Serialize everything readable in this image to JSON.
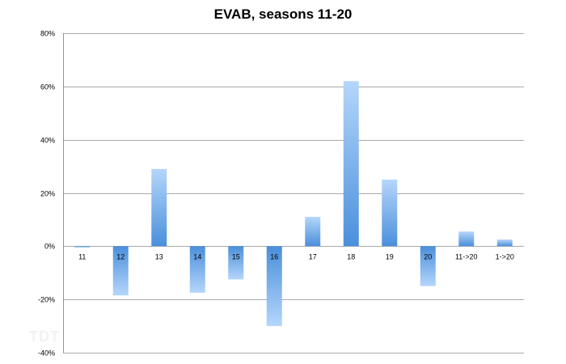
{
  "chart_data": {
    "type": "bar",
    "title": "EVAB, seasons 11-20",
    "xlabel": "",
    "ylabel": "",
    "categories": [
      "11",
      "12",
      "13",
      "14",
      "15",
      "16",
      "17",
      "18",
      "19",
      "20",
      "11->20",
      "1->20"
    ],
    "values": [
      -0.5,
      -18.5,
      29,
      -17.5,
      -12.5,
      -30,
      11,
      62,
      25,
      -15,
      5.5,
      2.5
    ],
    "ylim": [
      -40,
      80
    ],
    "yticks": [
      80,
      60,
      40,
      20,
      0,
      -20,
      -40
    ],
    "ytick_labels": [
      "80%",
      "60%",
      "40%",
      "20%",
      "0%",
      "-20%",
      "-40%"
    ],
    "grid": true,
    "legend": "none",
    "colors": {
      "bar_light": "#b5d6fb",
      "bar_dark": "#4a8fdb",
      "grid": "#8c8c8c",
      "axis": "#7a7a7a"
    }
  },
  "watermark": "TDT"
}
